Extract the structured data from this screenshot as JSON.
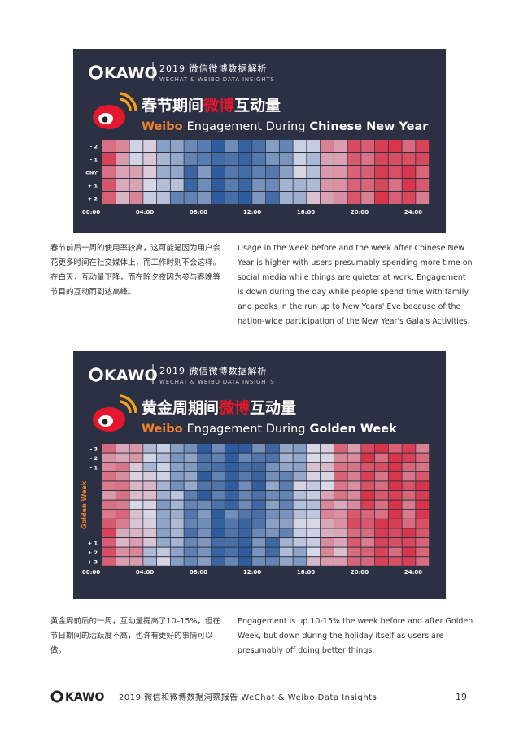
{
  "header": {
    "brand": "KAWO",
    "title": "2019 微信微博数据解析",
    "subtitle": "WECHAT & WEIBO DATA INSIGHTS"
  },
  "figures": [
    {
      "title_cn": [
        "春节期间",
        "微博",
        "互动量"
      ],
      "title_en": [
        "Weibo",
        "Engagement During",
        "Chinese New Year"
      ],
      "rows": [
        "- 2",
        "- 1",
        "CNY",
        "+ 1",
        "+ 2"
      ],
      "times": [
        "00:00",
        "04:00",
        "08:00",
        "12:00",
        "16:00",
        "20:00",
        "24:00"
      ]
    },
    {
      "title_cn": [
        "黄金周期间",
        "微博",
        "互动量"
      ],
      "title_en": [
        "Weibo",
        "Engagement During",
        "Golden Week"
      ],
      "rows": [
        "- 3",
        "- 2",
        "- 1",
        null,
        null,
        null,
        null,
        null,
        null,
        null,
        "+ 1",
        "+ 2",
        "+ 3"
      ],
      "group_label": "Golden Week",
      "times": [
        "00:00",
        "04:00",
        "08:00",
        "12:00",
        "16:00",
        "20:00",
        "24:00"
      ]
    }
  ],
  "sections": [
    {
      "cn": "春节前后一周的使用率较高，这可能是因为用户会花更多时间在社交媒体上，而工作时则不会这样。在白天，互动量下降，而在除夕夜因为参与春晚等节目的互动而到达高峰。",
      "en": "Usage in the week before and the week after Chinese New Year is higher with users presumably spending more time on social media while things are quieter at work. Engagement is down during the day while people spend time with family and peaks in the run up to New Years' Eve because of the nation-wide participation of the New Year's Gala's Activities."
    },
    {
      "cn": "黄金周前后的一周，互动量提高了10–15%，但在节日期间的活跃度不高，也许有更好的事情可以做。",
      "en": "Engagement is up 10-15% the week before and after Golden Week, but down during the holiday itself as users are presumably off doing better things."
    }
  ],
  "footer": {
    "brand": "KAWO",
    "text": "2019 微信和微博数据洞察报告 WeChat & Weibo Data Insights",
    "page": "19"
  }
}
